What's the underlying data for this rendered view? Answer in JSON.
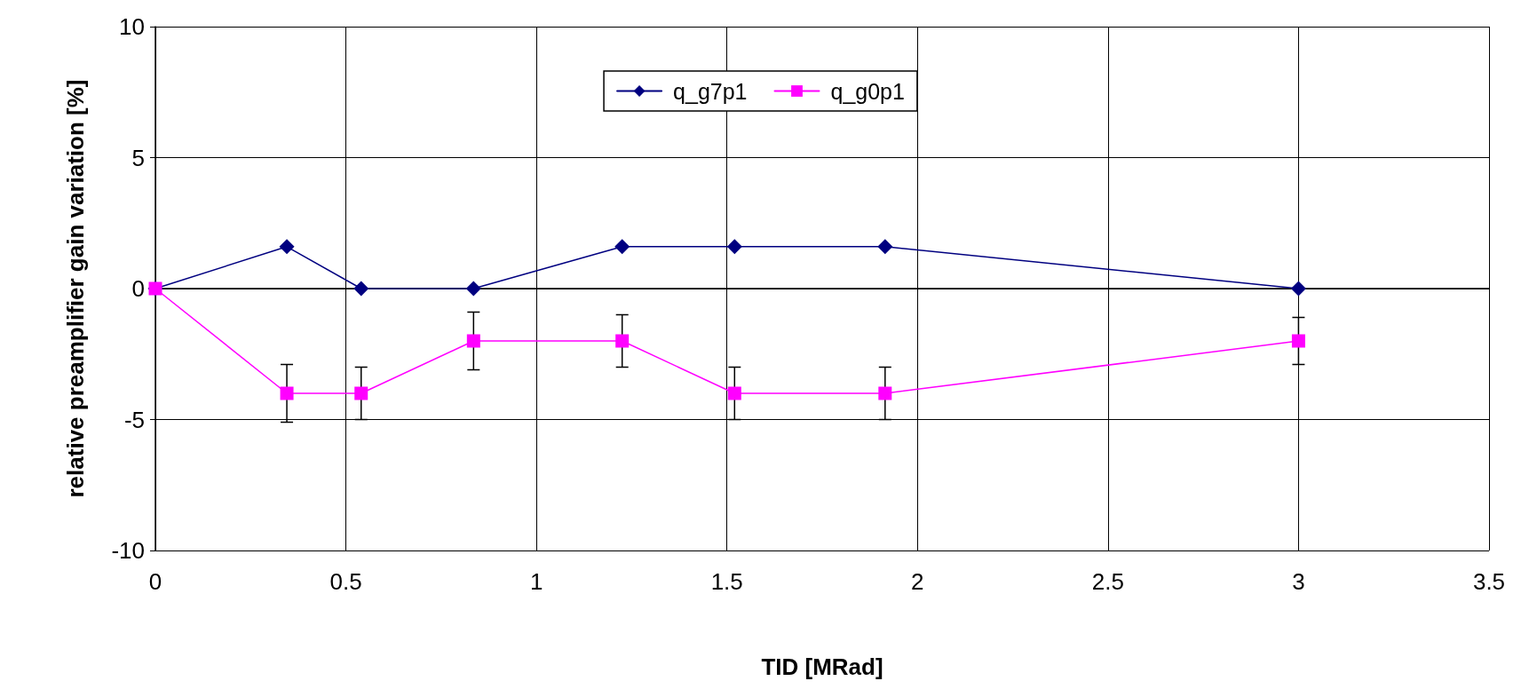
{
  "chart_data": {
    "type": "line",
    "xlabel": "TID [MRad]",
    "ylabel": "relative preamplifier gain variation [%]",
    "xlim": [
      0,
      3.5
    ],
    "xticks": [
      0,
      0.5,
      1,
      1.5,
      2,
      2.5,
      3,
      3.5
    ],
    "ylim": [
      -10,
      10
    ],
    "yticks": [
      -10,
      -5,
      0,
      5,
      10
    ],
    "grid": true,
    "legend": "top",
    "series": [
      {
        "name": "q_g7p1",
        "color": "#000080",
        "marker": "diamond",
        "x": [
          0,
          0.345,
          0.54,
          0.835,
          1.225,
          1.52,
          1.915,
          3.0
        ],
        "values": [
          0,
          1.6,
          0,
          0,
          1.6,
          1.6,
          1.6,
          0
        ]
      },
      {
        "name": "q_g0p1",
        "color": "#ff00ff",
        "marker": "square",
        "x": [
          0,
          0.345,
          0.54,
          0.835,
          1.225,
          1.52,
          1.915,
          3.0
        ],
        "values": [
          0,
          -4,
          -4,
          -2,
          -2,
          -4,
          -4,
          -2
        ],
        "errors": [
          null,
          1.1,
          1,
          1.1,
          1,
          1,
          1,
          0.9
        ]
      }
    ]
  }
}
